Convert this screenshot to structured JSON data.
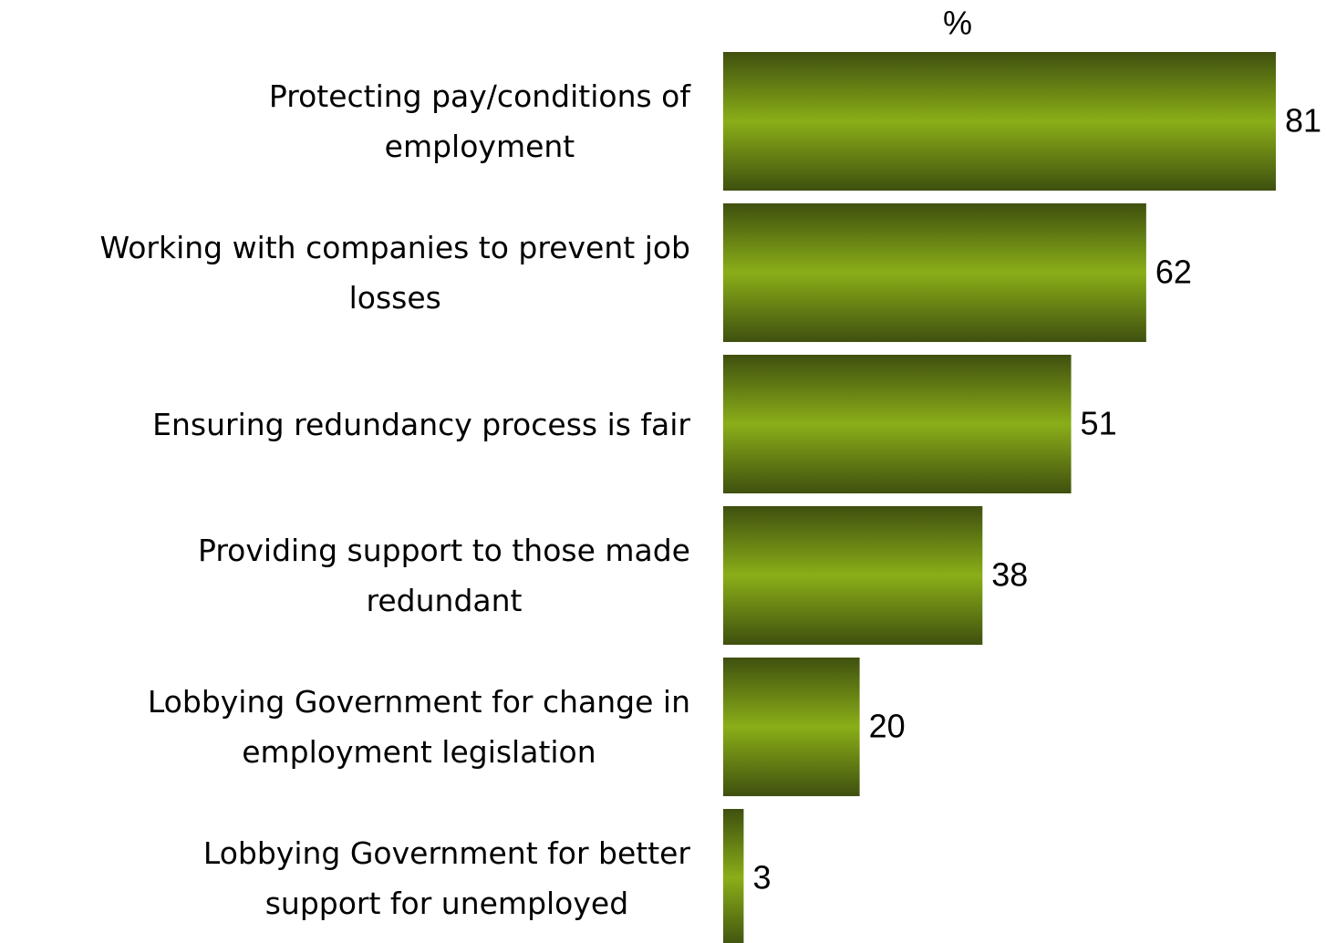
{
  "chart_data": {
    "type": "barh",
    "value_axis_label": "%",
    "categories": [
      "Protecting pay/conditions of\nemployment",
      "Working with companies to prevent job\nlosses",
      "Ensuring redundancy process is fair",
      "Providing support to those made\nredundant",
      "Lobbying Government for change in\nemployment legislation",
      "Lobbying Government for better\nsupport for unemployed"
    ],
    "values": [
      81,
      62,
      51,
      38,
      20,
      3
    ],
    "color": "#8aae18"
  }
}
